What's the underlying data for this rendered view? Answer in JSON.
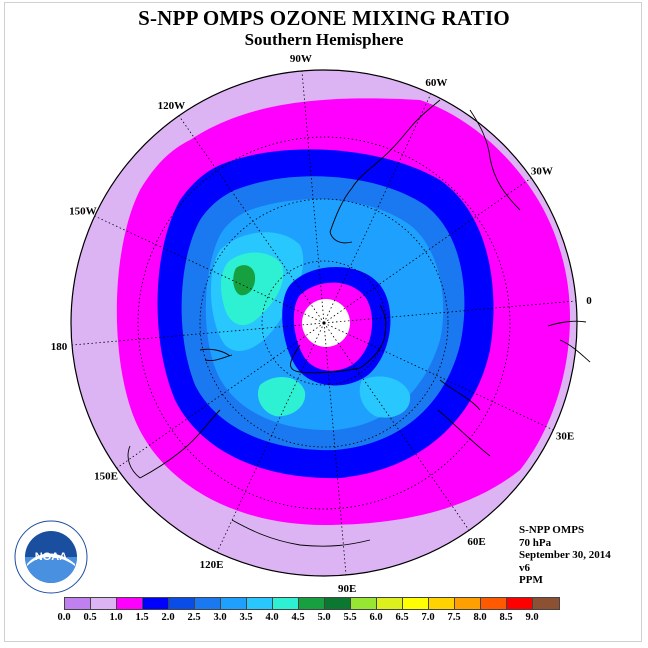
{
  "title": "S-NPP OMPS OZONE MIXING RATIO",
  "subtitle": "Southern Hemisphere",
  "longitude_labels": [
    {
      "text": "90W",
      "deg": -90
    },
    {
      "text": "60W",
      "deg": -60
    },
    {
      "text": "30W",
      "deg": -30
    },
    {
      "text": "0",
      "deg": 0
    },
    {
      "text": "30E",
      "deg": 30
    },
    {
      "text": "60E",
      "deg": 60
    },
    {
      "text": "90E",
      "deg": 90
    },
    {
      "text": "120E",
      "deg": 120
    },
    {
      "text": "150E",
      "deg": 150
    },
    {
      "text": "180",
      "deg": 180
    },
    {
      "text": "150W",
      "deg": 210
    },
    {
      "text": "120W",
      "deg": 240
    }
  ],
  "info": {
    "instrument": "S-NPP OMPS",
    "level": "70 hPa",
    "date": "September 30, 2014",
    "version": "v6",
    "units": "PPM"
  },
  "logo": {
    "text": "NOAA",
    "ring_text": "NATIONAL OCEANIC AND ATMOSPHERIC ADMINISTRATION · U.S. DEPARTMENT OF COMMERCE"
  },
  "colorbar": {
    "ticks": [
      "0.0",
      "0.5",
      "1.0",
      "1.5",
      "2.0",
      "2.5",
      "3.0",
      "3.5",
      "4.0",
      "4.5",
      "5.0",
      "5.5",
      "6.0",
      "6.5",
      "7.0",
      "7.5",
      "8.0",
      "8.5",
      "9.0"
    ],
    "colors": [
      "#c080f0",
      "#dcb4f4",
      "#ff00ff",
      "#0000ff",
      "#0a4ce6",
      "#1a78f0",
      "#1ea0ff",
      "#28c8ff",
      "#2ef0d2",
      "#16a040",
      "#0a7830",
      "#96e632",
      "#dcf01e",
      "#ffff00",
      "#ffd200",
      "#ffa000",
      "#ff5a00",
      "#ff0000",
      "#8c5032"
    ]
  }
}
